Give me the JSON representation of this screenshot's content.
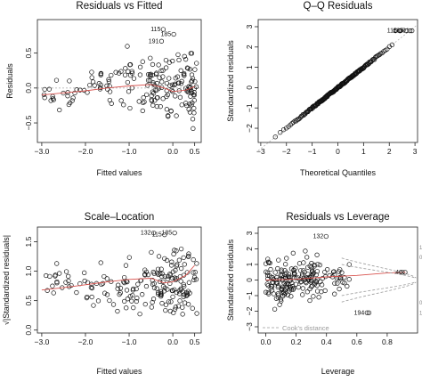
{
  "chart_data": [
    {
      "type": "scatter",
      "title": "Residuals vs Fitted",
      "xlabel": "Fitted values",
      "ylabel": "Residuals",
      "xlim": [
        -3.1,
        0.65
      ],
      "ylim": [
        -0.78,
        0.98
      ],
      "xticks": [
        -3.0,
        -2.0,
        -1.0,
        0.0,
        0.5
      ],
      "xtick_labels": [
        "−3.0",
        "−2.0",
        "−1.0",
        "0.0",
        "0.5"
      ],
      "yticks": [
        -0.5,
        0.0,
        0.5
      ],
      "ytick_labels": [
        "−0.5",
        "0.0",
        "0.5"
      ],
      "smooth": [
        [
          -3.0,
          -0.1
        ],
        [
          -2.5,
          -0.07
        ],
        [
          -2.0,
          -0.04
        ],
        [
          -1.5,
          0.0
        ],
        [
          -1.0,
          0.03
        ],
        [
          -0.5,
          0.05
        ],
        [
          -0.2,
          0.0
        ],
        [
          0.0,
          -0.05
        ],
        [
          0.3,
          -0.03
        ],
        [
          0.5,
          0.02
        ]
      ],
      "reference_line": 0,
      "point_labels": [
        {
          "text": "115",
          "x": -0.28,
          "y": 0.84
        },
        {
          "text": "191",
          "x": -0.32,
          "y": 0.67
        },
        {
          "text": "185",
          "x": -0.04,
          "y": 0.77
        }
      ],
      "clusters": [
        {
          "x": [
            -2.95,
            -2.0
          ],
          "y": [
            -0.45,
            0.3
          ],
          "n": 22
        },
        {
          "x": [
            -2.0,
            -1.2
          ],
          "y": [
            -0.45,
            0.55
          ],
          "n": 24
        },
        {
          "x": [
            -1.2,
            -0.5
          ],
          "y": [
            -0.55,
            0.75
          ],
          "n": 34
        },
        {
          "x": [
            -0.5,
            0.55
          ],
          "y": [
            -0.7,
            0.8
          ],
          "n": 110
        }
      ]
    },
    {
      "type": "scatter",
      "title": "Q–Q Residuals",
      "xlabel": "Theoretical Quantiles",
      "ylabel": "Standardized residuals",
      "xlim": [
        -3.1,
        3.1
      ],
      "ylim": [
        -2.7,
        3.35
      ],
      "xticks": [
        -3,
        -2,
        -1,
        0,
        1,
        2,
        3
      ],
      "xtick_labels": [
        "−3",
        "−2",
        "−1",
        "0",
        "1",
        "2",
        "3"
      ],
      "yticks": [
        -2,
        -1,
        0,
        1,
        2,
        3
      ],
      "ytick_labels": [
        "−2",
        "−1",
        "0",
        "1",
        "2",
        "3"
      ],
      "reference_line": {
        "slope": 1,
        "intercept": 0
      },
      "n_points": 200,
      "point_labels": [
        {
          "text": "115",
          "x": 2.3,
          "y": 2.8
        },
        {
          "text": "185",
          "x": 2.55,
          "y": 2.8
        },
        {
          "text": "191",
          "x": 2.78,
          "y": 2.8
        }
      ]
    },
    {
      "type": "scatter",
      "title": "Scale–Location",
      "xlabel": "Fitted values",
      "ylabel": "√|Standardized residuals|",
      "xlim": [
        -3.1,
        0.65
      ],
      "ylim": [
        -0.05,
        1.75
      ],
      "xticks": [
        -3.0,
        -2.0,
        -1.0,
        0.0,
        0.5
      ],
      "xtick_labels": [
        "−3.0",
        "−2.0",
        "−1.0",
        "0.0",
        "0.5"
      ],
      "yticks": [
        0.0,
        0.5,
        1.0,
        1.5
      ],
      "ytick_labels": [
        "0.0",
        "0.5",
        "1.0",
        "1.5"
      ],
      "smooth": [
        [
          -3.0,
          0.68
        ],
        [
          -2.5,
          0.72
        ],
        [
          -2.0,
          0.77
        ],
        [
          -1.5,
          0.82
        ],
        [
          -1.0,
          0.86
        ],
        [
          -0.5,
          0.88
        ],
        [
          -0.2,
          0.8
        ],
        [
          0.0,
          0.82
        ],
        [
          0.3,
          0.93
        ],
        [
          0.5,
          1.1
        ]
      ],
      "point_labels": [
        {
          "text": "132",
          "x": -0.5,
          "y": 1.65
        },
        {
          "text": "115",
          "x": -0.25,
          "y": 1.62
        },
        {
          "text": "185",
          "x": -0.02,
          "y": 1.65
        }
      ],
      "clusters": [
        {
          "x": [
            -2.95,
            -2.0
          ],
          "y": [
            0.4,
            1.2
          ],
          "n": 22
        },
        {
          "x": [
            -2.0,
            -1.2
          ],
          "y": [
            0.15,
            1.25
          ],
          "n": 24
        },
        {
          "x": [
            -1.2,
            -0.5
          ],
          "y": [
            0.1,
            1.45
          ],
          "n": 34
        },
        {
          "x": [
            -0.5,
            0.55
          ],
          "y": [
            0.08,
            1.55
          ],
          "n": 110
        }
      ]
    },
    {
      "type": "scatter",
      "title": "Residuals vs Leverage",
      "xlabel": "Leverage",
      "ylabel": "Standardized residuals",
      "xlim": [
        -0.05,
        1.0
      ],
      "ylim": [
        -3.4,
        3.4
      ],
      "xticks": [
        0.0,
        0.2,
        0.4,
        0.6,
        0.8
      ],
      "xtick_labels": [
        "0.0",
        "0.2",
        "0.4",
        "0.6",
        "0.8"
      ],
      "yticks": [
        -3,
        -2,
        -1,
        0,
        1,
        2,
        3
      ],
      "ytick_labels": [
        "−3",
        "−2",
        "−1",
        "0",
        "1",
        "2",
        "3"
      ],
      "smooth": [
        [
          0.0,
          0.0
        ],
        [
          0.2,
          0.05
        ],
        [
          0.4,
          0.2
        ],
        [
          0.6,
          0.3
        ],
        [
          0.8,
          0.45
        ],
        [
          0.92,
          0.5
        ]
      ],
      "cooks_levels": [
        0.5,
        1
      ],
      "contour_labels": [
        "1",
        "0.5",
        "0.5",
        "1"
      ],
      "legend": {
        "label": "Cook's distance",
        "position": "bottom-left"
      },
      "point_labels": [
        {
          "text": "132",
          "x": 0.38,
          "y": 2.8
        },
        {
          "text": "40",
          "x": 0.9,
          "y": 0.5
        },
        {
          "text": "194",
          "x": 0.65,
          "y": -2.1
        }
      ],
      "extra_points": [
        [
          0.55,
          1.0
        ],
        [
          0.68,
          -2.1
        ],
        [
          0.9,
          0.5
        ]
      ],
      "clusters": [
        {
          "x": [
            0.0,
            0.18
          ],
          "y": [
            -2.2,
            2.0
          ],
          "n": 90
        },
        {
          "x": [
            0.18,
            0.35
          ],
          "y": [
            -1.8,
            2.2
          ],
          "n": 70
        },
        {
          "x": [
            0.35,
            0.55
          ],
          "y": [
            -1.2,
            1.5
          ],
          "n": 30
        }
      ]
    }
  ]
}
